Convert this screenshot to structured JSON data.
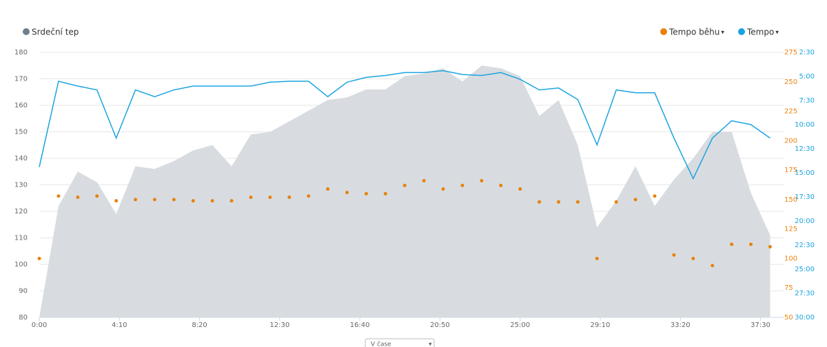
{
  "chart_data": {
    "type": "combo",
    "legend_dropdown": "▾",
    "view_select": "V čase",
    "x": [
      0,
      1,
      2,
      3,
      4,
      5,
      6,
      7,
      8,
      9,
      10,
      11,
      12,
      13,
      14,
      15,
      16,
      17,
      18,
      19,
      20,
      21,
      22,
      23,
      24,
      25,
      26,
      27,
      28,
      29,
      30,
      31,
      32,
      33,
      34,
      35,
      36,
      37,
      38
    ],
    "xlim": [
      0,
      38.7
    ],
    "xticks": [
      {
        "value": 0,
        "label": "0:00"
      },
      {
        "value": 4.1667,
        "label": "4:10"
      },
      {
        "value": 8.3333,
        "label": "8:20"
      },
      {
        "value": 12.5,
        "label": "12:30"
      },
      {
        "value": 16.6667,
        "label": "16:40"
      },
      {
        "value": 20.8333,
        "label": "20:50"
      },
      {
        "value": 25,
        "label": "25:00"
      },
      {
        "value": 29.1667,
        "label": "29:10"
      },
      {
        "value": 33.3333,
        "label": "33:20"
      },
      {
        "value": 37.5,
        "label": "37:30"
      }
    ],
    "ylim": [
      80,
      180
    ],
    "yticks": [
      80,
      90,
      100,
      110,
      120,
      130,
      140,
      150,
      160,
      170,
      180
    ],
    "y2lim": [
      50,
      275
    ],
    "y2ticks": [
      50,
      75,
      100,
      125,
      150,
      175,
      200,
      225,
      250,
      275
    ],
    "y3lim": [
      30,
      2.5
    ],
    "y3ticks": [
      {
        "value": 2.5,
        "label": "2:30"
      },
      {
        "value": 5,
        "label": "5:00"
      },
      {
        "value": 7.5,
        "label": "7:30"
      },
      {
        "value": 10,
        "label": "10:00"
      },
      {
        "value": 12.5,
        "label": "12:30"
      },
      {
        "value": 15,
        "label": "15:00"
      },
      {
        "value": 17.5,
        "label": "17:30"
      },
      {
        "value": 20,
        "label": "20:00"
      },
      {
        "value": 22.5,
        "label": "22:30"
      },
      {
        "value": 25,
        "label": "25:00"
      },
      {
        "value": 27.5,
        "label": "27:30"
      },
      {
        "value": 30,
        "label": "30:00"
      }
    ],
    "grid": true,
    "series": [
      {
        "name": "Srdeční tep",
        "type": "area",
        "axis": "y",
        "color": "#d8dce0",
        "legend_color": "#6f7e8c",
        "values": [
          80,
          122,
          135,
          131,
          119,
          137,
          136,
          139,
          143,
          145,
          137,
          149,
          150,
          154,
          158,
          162,
          163,
          166,
          166,
          171,
          172,
          174,
          169,
          175,
          174,
          171,
          156,
          162,
          145,
          114,
          124,
          137,
          122,
          132,
          140,
          150,
          150,
          127,
          111
        ]
      },
      {
        "name": "Tempo běhu",
        "type": "scatter",
        "axis": "y2",
        "color": "#e8820c",
        "values": [
          100,
          153,
          152,
          153,
          149,
          150,
          150,
          150,
          149,
          149,
          149,
          152,
          152,
          152,
          153,
          159,
          156,
          155,
          155,
          162,
          166,
          159,
          162,
          166,
          162,
          159,
          148,
          148,
          148,
          100,
          148,
          150,
          153,
          103,
          100,
          94,
          112,
          112,
          110
        ]
      },
      {
        "name": "Tempo",
        "type": "line",
        "axis": "y3",
        "color": "#1aa3e0",
        "values": [
          14.4,
          5.5,
          6.0,
          6.4,
          11.4,
          6.4,
          7.1,
          6.4,
          6.0,
          6.0,
          6.0,
          6.0,
          5.6,
          5.5,
          5.5,
          7.1,
          5.6,
          5.1,
          4.9,
          4.6,
          4.6,
          4.4,
          4.8,
          4.9,
          4.6,
          5.3,
          6.4,
          6.2,
          7.4,
          12.1,
          6.4,
          6.7,
          6.7,
          11.4,
          15.6,
          11.4,
          9.6,
          10.0,
          11.4
        ]
      }
    ]
  }
}
